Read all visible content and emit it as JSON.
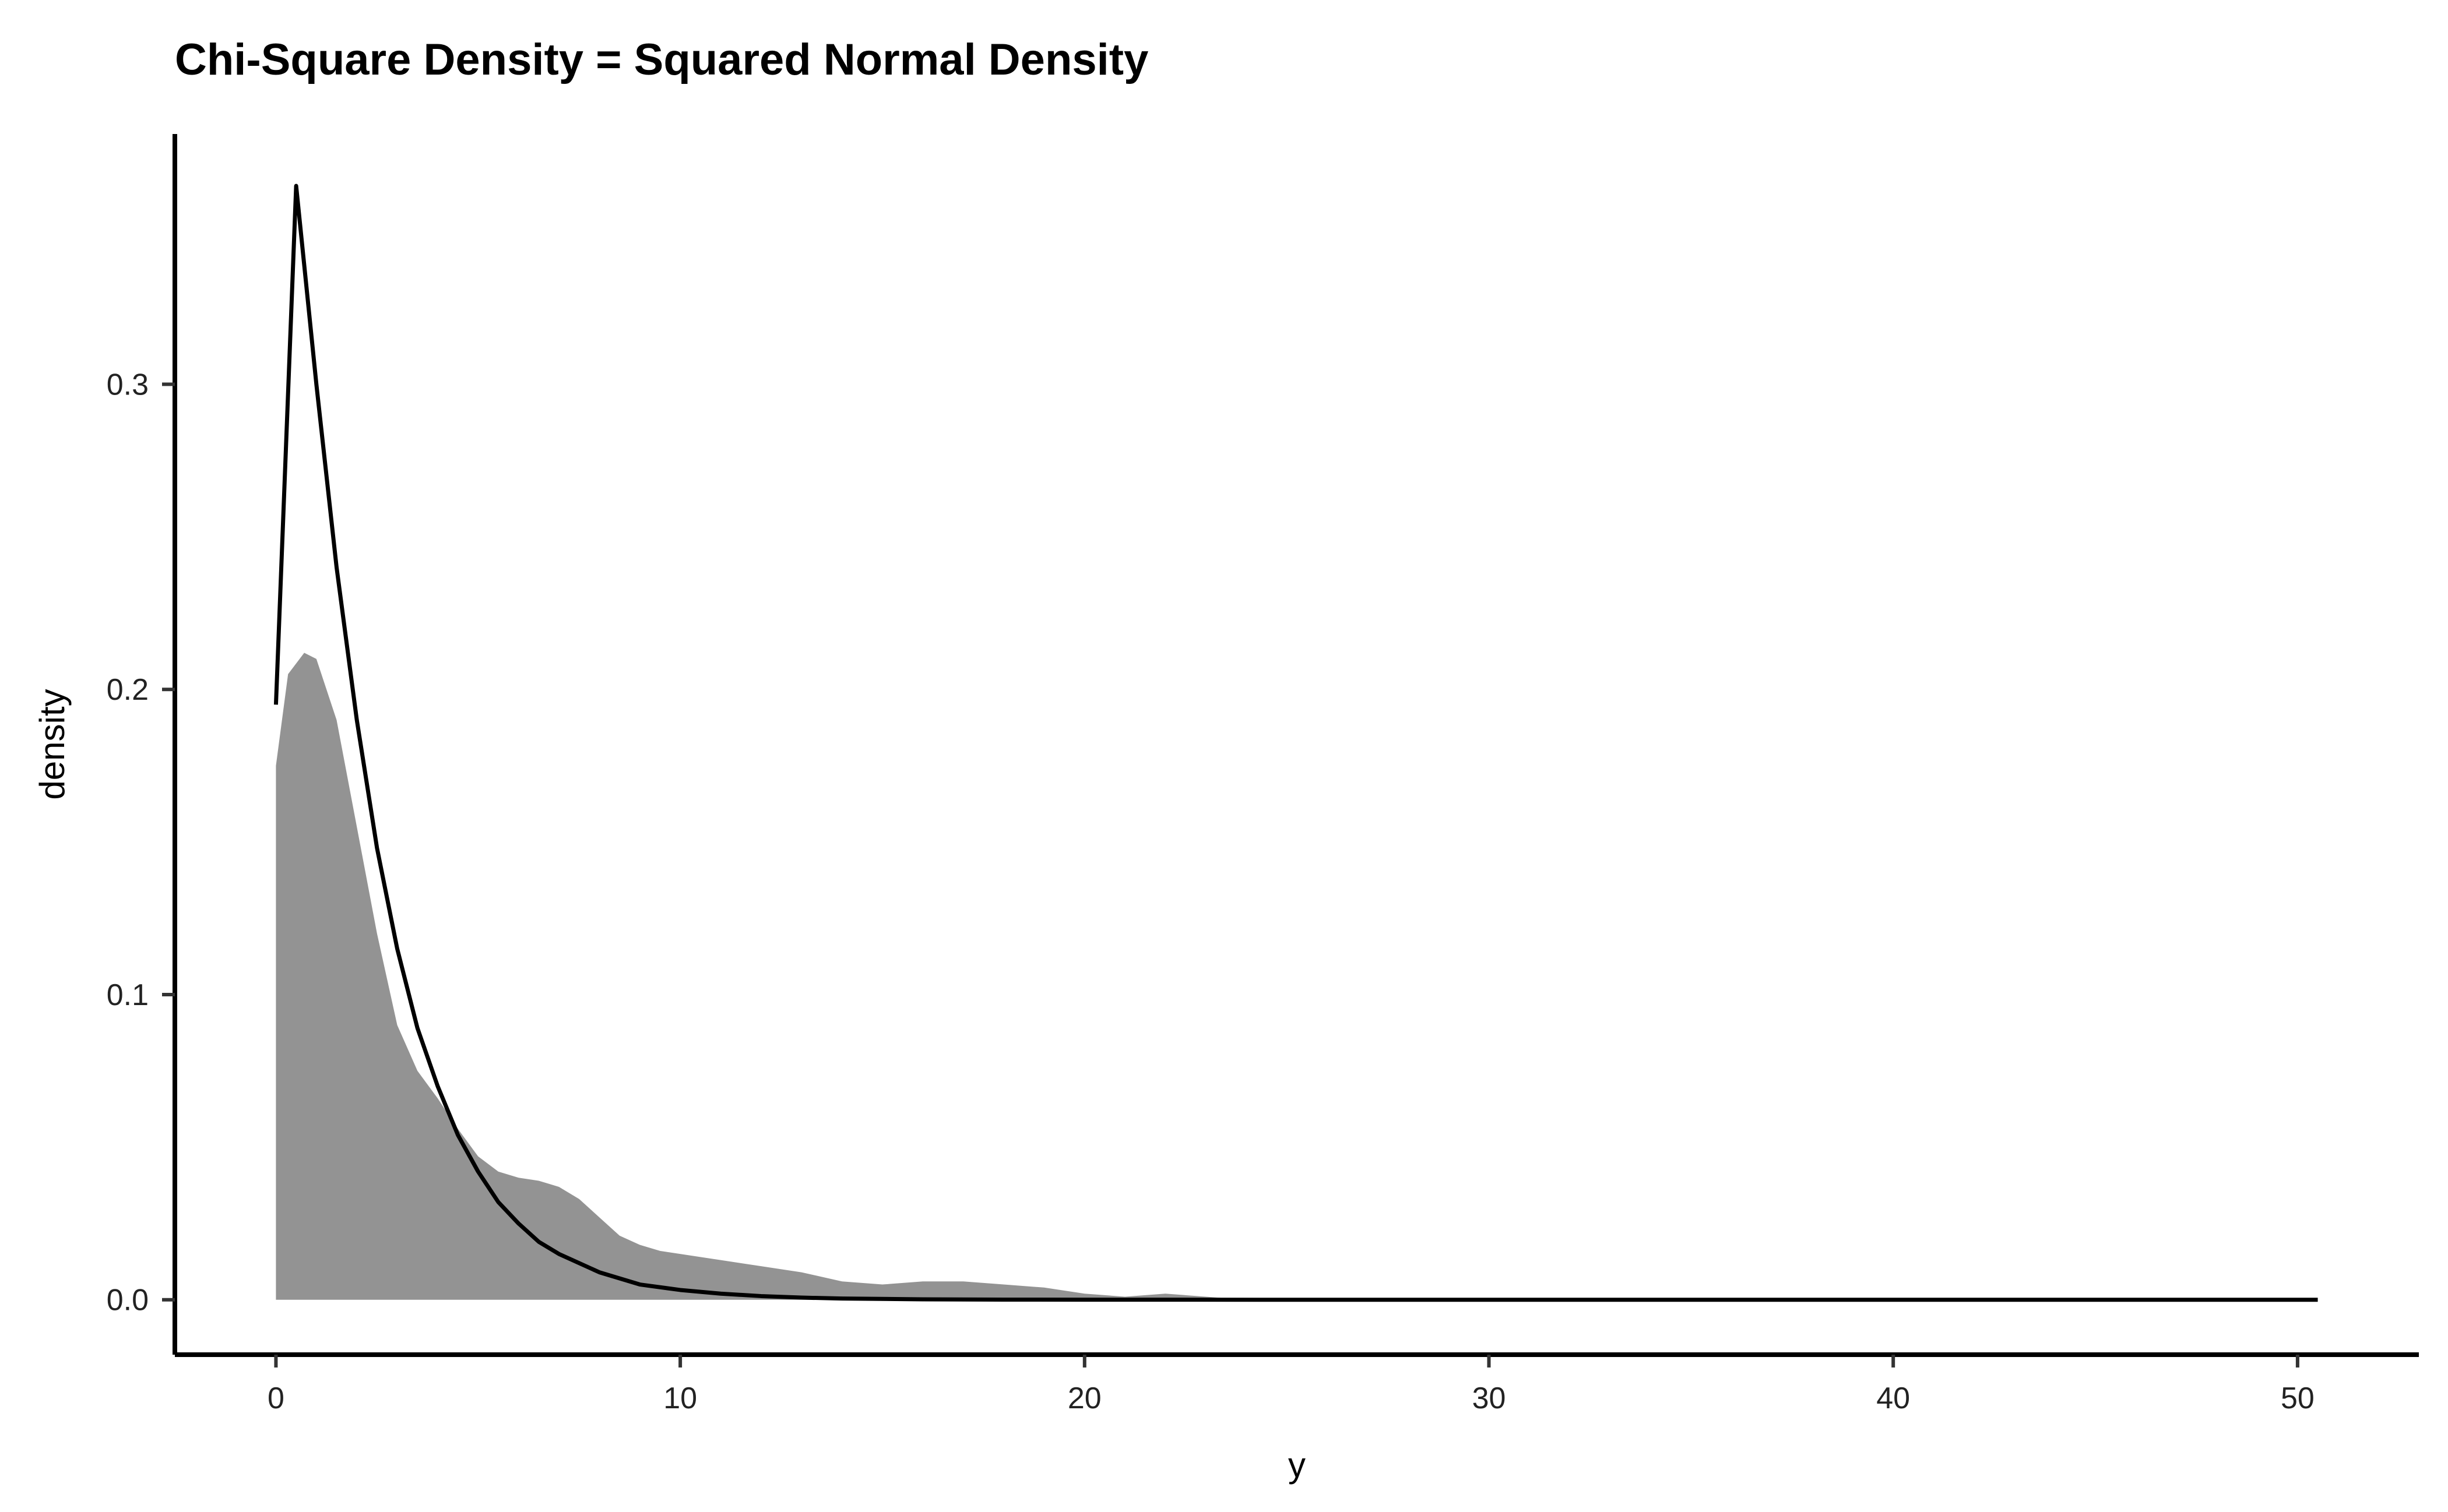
{
  "chart_data": {
    "type": "area",
    "title": "Chi-Square Density = Squared Normal Density",
    "xlabel": "y",
    "ylabel": "density",
    "xlim": [
      -2.5,
      53
    ],
    "ylim": [
      -0.018,
      0.382
    ],
    "x_ticks": [
      0,
      10,
      20,
      30,
      40,
      50
    ],
    "x_tick_labels": [
      "0",
      "10",
      "20",
      "30",
      "40",
      "50"
    ],
    "y_ticks": [
      0.0,
      0.1,
      0.2,
      0.3
    ],
    "y_tick_labels": [
      "0.0",
      "0.1",
      "0.2",
      "0.3"
    ],
    "grid": false,
    "legend": "none",
    "series": [
      {
        "kind": "filled-density",
        "color": "#939393",
        "x": [
          0,
          0.3,
          0.7,
          1.0,
          1.5,
          2.0,
          2.5,
          3.0,
          3.5,
          4.0,
          4.5,
          5.0,
          5.5,
          6.0,
          6.5,
          7.0,
          7.5,
          8.0,
          8.5,
          9.0,
          9.5,
          10.0,
          11.0,
          12.0,
          13.0,
          14.0,
          15.0,
          16.0,
          17.0,
          18.0,
          19.0,
          20.0,
          21.0,
          22.0,
          23.0,
          24.0,
          26.0,
          28.0,
          30.0,
          33.0,
          36.0,
          40.0,
          45.0,
          50.5
        ],
        "y": [
          0.175,
          0.205,
          0.212,
          0.21,
          0.19,
          0.155,
          0.12,
          0.09,
          0.075,
          0.066,
          0.056,
          0.047,
          0.042,
          0.04,
          0.039,
          0.037,
          0.033,
          0.027,
          0.021,
          0.018,
          0.016,
          0.015,
          0.013,
          0.011,
          0.009,
          0.006,
          0.005,
          0.006,
          0.006,
          0.005,
          0.004,
          0.002,
          0.001,
          0.002,
          0.001,
          0.0,
          0.0,
          0.0005,
          0.0,
          0.0005,
          0.0003,
          0.0,
          0.0,
          0.0
        ]
      },
      {
        "kind": "theoretical-curve",
        "color": "#000000",
        "x": [
          0.0,
          0.5,
          1.0,
          1.5,
          2.0,
          2.5,
          3.0,
          3.5,
          4.0,
          4.5,
          5.0,
          5.5,
          6.0,
          6.5,
          7.0,
          8.0,
          9.0,
          10.0,
          11.0,
          12.0,
          13.0,
          14.0,
          16.0,
          18.0,
          20.0,
          25.0,
          30.0,
          40.0,
          50.5
        ],
        "y": [
          0.195,
          0.365,
          0.3,
          0.24,
          0.19,
          0.148,
          0.115,
          0.089,
          0.07,
          0.054,
          0.042,
          0.032,
          0.025,
          0.019,
          0.015,
          0.009,
          0.005,
          0.0032,
          0.002,
          0.0012,
          0.0007,
          0.0004,
          0.00015,
          5e-05,
          2e-05,
          0.0,
          0.0,
          0.0,
          0.0
        ]
      }
    ]
  }
}
